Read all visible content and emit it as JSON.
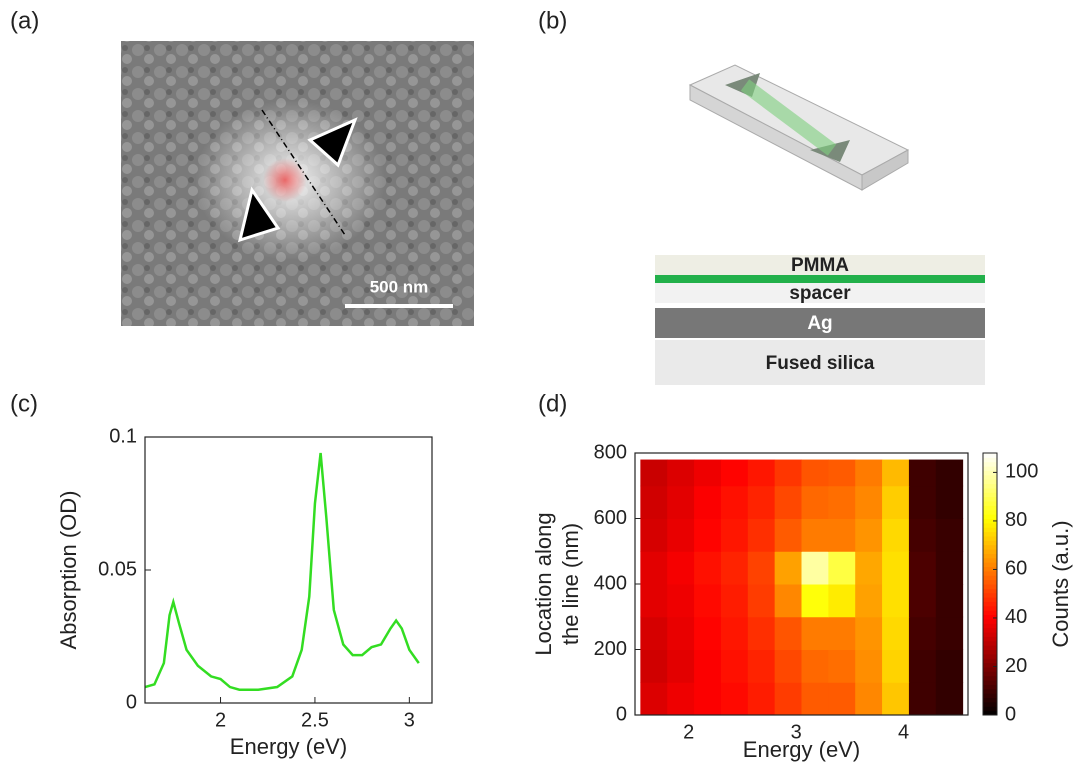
{
  "panels": [
    "(a)",
    "(b)",
    "(c)",
    "(d)"
  ],
  "panel_a": {
    "scale_bar": "500 nm"
  },
  "panel_b": {
    "layers": [
      "PMMA",
      "spacer",
      "Ag",
      "Fused silica"
    ]
  },
  "chart_data": [
    {
      "type": "line",
      "xlabel": "Energy (eV)",
      "ylabel": "Absorption (OD)",
      "x": [
        1.6,
        1.65,
        1.7,
        1.73,
        1.75,
        1.78,
        1.82,
        1.88,
        1.95,
        2.0,
        2.05,
        2.1,
        2.2,
        2.3,
        2.38,
        2.43,
        2.47,
        2.5,
        2.53,
        2.56,
        2.6,
        2.65,
        2.7,
        2.75,
        2.8,
        2.85,
        2.9,
        2.93,
        2.96,
        3.0,
        3.05
      ],
      "series": [
        {
          "color": "#33dd22",
          "values": [
            0.006,
            0.007,
            0.015,
            0.033,
            0.038,
            0.03,
            0.02,
            0.014,
            0.01,
            0.009,
            0.006,
            0.005,
            0.005,
            0.006,
            0.01,
            0.02,
            0.04,
            0.075,
            0.094,
            0.07,
            0.035,
            0.022,
            0.018,
            0.018,
            0.021,
            0.022,
            0.028,
            0.031,
            0.028,
            0.02,
            0.015
          ]
        }
      ],
      "xlim": [
        1.6,
        3.12
      ],
      "ylim": [
        0,
        0.1
      ],
      "xticks": [
        2,
        2.5,
        3
      ],
      "yticks": [
        0,
        0.05,
        0.1
      ]
    },
    {
      "type": "heatmap",
      "xlabel": "Energy (eV)",
      "ylabel": [
        "Location along",
        "the line (nm)"
      ],
      "zlabel": "Counts (a.u.)",
      "colormap": "hot",
      "xbins": [
        1.55,
        1.8,
        2.05,
        2.3,
        2.55,
        2.8,
        3.05,
        3.3,
        3.55,
        3.8,
        4.05,
        4.3,
        4.55
      ],
      "ybins": [
        0,
        100,
        200,
        300,
        400,
        500,
        600,
        700,
        780
      ],
      "z": [
        [
          35,
          38,
          40,
          42,
          45,
          50,
          55,
          55,
          62,
          72,
          10,
          8
        ],
        [
          33,
          36,
          40,
          43,
          46,
          52,
          57,
          58,
          63,
          74,
          10,
          8
        ],
        [
          34,
          37,
          41,
          44,
          48,
          54,
          60,
          60,
          64,
          75,
          11,
          9
        ],
        [
          36,
          38,
          42,
          45,
          50,
          62,
          82,
          78,
          66,
          76,
          12,
          9
        ],
        [
          36,
          39,
          43,
          46,
          51,
          66,
          98,
          88,
          67,
          76,
          12,
          9
        ],
        [
          34,
          37,
          41,
          44,
          48,
          55,
          60,
          60,
          64,
          75,
          11,
          9
        ],
        [
          33,
          36,
          40,
          43,
          46,
          52,
          57,
          58,
          62,
          73,
          10,
          8
        ],
        [
          32,
          35,
          38,
          41,
          44,
          49,
          54,
          55,
          60,
          70,
          10,
          8
        ]
      ],
      "xlim": [
        1.5,
        4.6
      ],
      "ylim": [
        0,
        800
      ],
      "xticks": [
        2,
        3,
        4
      ],
      "yticks": [
        0,
        200,
        400,
        600,
        800
      ],
      "zlim": [
        0,
        108
      ],
      "zticks": [
        0,
        20,
        40,
        60,
        80,
        100
      ]
    }
  ]
}
